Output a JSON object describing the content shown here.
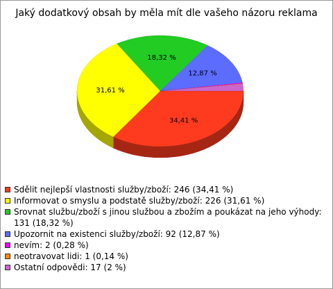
{
  "chart_data": {
    "type": "pie3d",
    "title": "Jaký dodatkový obsah by měla mít dle vašeho názoru reklama",
    "categories": [
      "Sdělit nejlepší vlastnosti služby/zboží: 246 (34,41 %)",
      "Informovat o smyslu a podstatě služby/zboží: 226 (31,61 %)",
      "Srovnat službu/zboží s jinou službou a zbožím a poukázat na jeho výhody: 131 (18,32 %)",
      "Upozornit na existenci služby/zboží: 92 (12,87 %)",
      "nevím: 2 (0,28 %)",
      "neotravovat lidi: 1 (0,14 %)",
      "Ostatní odpovědi: 17 (2 %)"
    ],
    "values": [
      34.41,
      31.61,
      18.32,
      12.87,
      0.28,
      0.14,
      2
    ],
    "value_labels": [
      "34,41 %",
      "31,61 %",
      "18,32 %",
      "12,87 %",
      null,
      null,
      null
    ],
    "colors": [
      "#ff3b1f",
      "#ffff00",
      "#22cc22",
      "#5c6cff",
      "#ff00ff",
      "#ff8800",
      "#cc66cc"
    ],
    "legend": "bottom"
  }
}
